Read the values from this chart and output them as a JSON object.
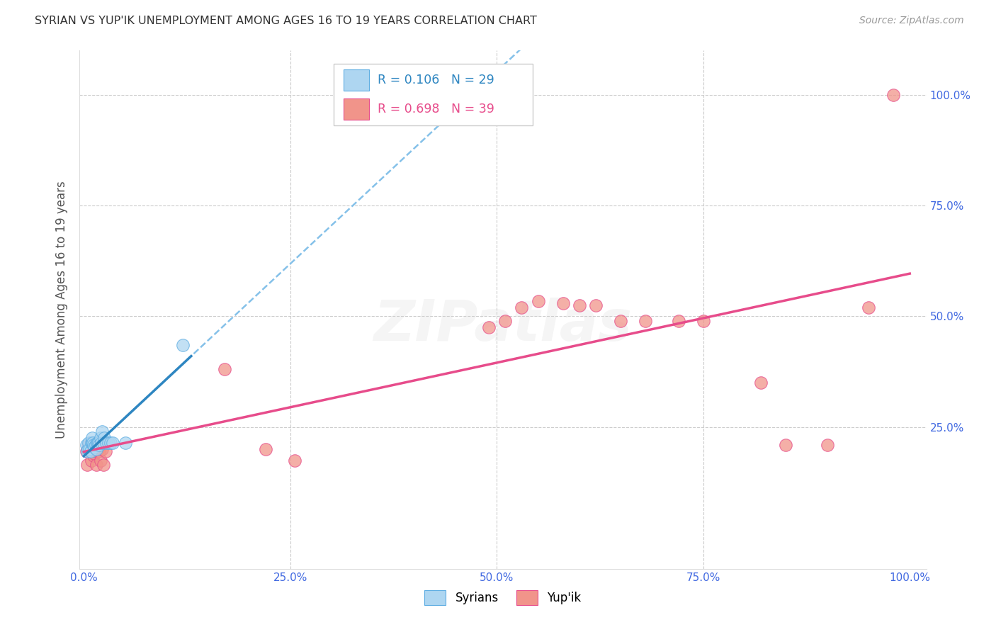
{
  "title": "SYRIAN VS YUP'IK UNEMPLOYMENT AMONG AGES 16 TO 19 YEARS CORRELATION CHART",
  "source": "Source: ZipAtlas.com",
  "ylabel": "Unemployment Among Ages 16 to 19 years",
  "xlim": [
    -0.005,
    1.02
  ],
  "ylim": [
    -0.07,
    1.1
  ],
  "xticks": [
    0.0,
    0.25,
    0.5,
    0.75,
    1.0
  ],
  "xtick_labels": [
    "0.0%",
    "25.0%",
    "50.0%",
    "75.0%",
    "100.0%"
  ],
  "ytick_positions_right": [
    1.0,
    0.75,
    0.5,
    0.25
  ],
  "ytick_labels_right": [
    "100.0%",
    "75.0%",
    "50.0%",
    "25.0%"
  ],
  "legend_r_syrian": "R = 0.106",
  "legend_n_syrian": "N = 29",
  "legend_r_yupik": "R = 0.698",
  "legend_n_yupik": "N = 39",
  "syrian_face_color": "#AED6F1",
  "syrian_edge_color": "#5DADE2",
  "yupik_face_color": "#F1948A",
  "yupik_edge_color": "#E74C8B",
  "syrian_line_color": "#2E86C1",
  "yupik_line_color": "#E74C8B",
  "dashed_line_color": "#85C1E9",
  "grid_color": "#CCCCCC",
  "watermark_text": "ZIPatlas",
  "background_color": "#FFFFFF",
  "syrian_x": [
    0.003,
    0.004,
    0.005,
    0.006,
    0.007,
    0.008,
    0.009,
    0.01,
    0.01,
    0.011,
    0.012,
    0.013,
    0.014,
    0.015,
    0.016,
    0.017,
    0.018,
    0.019,
    0.02,
    0.021,
    0.022,
    0.024,
    0.025,
    0.027,
    0.03,
    0.032,
    0.035,
    0.05,
    0.12
  ],
  "syrian_y": [
    0.21,
    0.195,
    0.2,
    0.215,
    0.2,
    0.195,
    0.215,
    0.215,
    0.225,
    0.215,
    0.21,
    0.205,
    0.21,
    0.2,
    0.215,
    0.215,
    0.215,
    0.21,
    0.225,
    0.215,
    0.24,
    0.215,
    0.225,
    0.215,
    0.215,
    0.215,
    0.215,
    0.215,
    0.435
  ],
  "yupik_x": [
    0.003,
    0.004,
    0.006,
    0.007,
    0.008,
    0.009,
    0.01,
    0.011,
    0.012,
    0.013,
    0.014,
    0.015,
    0.016,
    0.017,
    0.018,
    0.019,
    0.02,
    0.022,
    0.024,
    0.026,
    0.17,
    0.22,
    0.255,
    0.49,
    0.51,
    0.53,
    0.55,
    0.58,
    0.6,
    0.62,
    0.65,
    0.68,
    0.72,
    0.75,
    0.82,
    0.85,
    0.9,
    0.95,
    0.98
  ],
  "yupik_y": [
    0.195,
    0.165,
    0.21,
    0.2,
    0.215,
    0.175,
    0.195,
    0.195,
    0.185,
    0.19,
    0.21,
    0.165,
    0.195,
    0.2,
    0.21,
    0.195,
    0.175,
    0.2,
    0.165,
    0.195,
    0.38,
    0.2,
    0.175,
    0.475,
    0.49,
    0.52,
    0.535,
    0.53,
    0.525,
    0.525,
    0.49,
    0.49,
    0.49,
    0.49,
    0.35,
    0.21,
    0.21,
    0.52,
    1.0
  ]
}
